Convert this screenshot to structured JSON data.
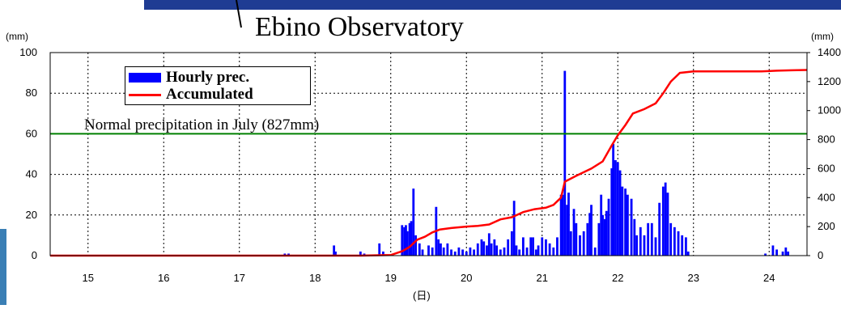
{
  "chart_data": {
    "type": "bar+line",
    "title": "Ebino Observatory",
    "left_unit": "(mm)",
    "right_unit": "(mm)",
    "xlabel": "(日)",
    "x_ticks": [
      "15",
      "16",
      "17",
      "18",
      "19",
      "20",
      "21",
      "22",
      "23",
      "24"
    ],
    "left_ticks": [
      "0",
      "20",
      "40",
      "60",
      "80",
      "100"
    ],
    "right_ticks": [
      "0",
      "200",
      "400",
      "600",
      "800",
      "1000",
      "1200",
      "1400"
    ],
    "ylim_left": [
      0,
      100
    ],
    "ylim_right": [
      0,
      1400
    ],
    "xlim_days": [
      14.5,
      24.5
    ],
    "grid": "dotted",
    "normal_line": {
      "value": 60,
      "label": "Normal precipitation in July (827mm)",
      "color": "#008000"
    },
    "series": [
      {
        "name": "Hourly prec.",
        "kind": "bar",
        "color": "#0000ff",
        "points": [
          [
            17.6,
            1
          ],
          [
            17.65,
            1
          ],
          [
            18.25,
            5
          ],
          [
            18.27,
            2
          ],
          [
            18.6,
            2
          ],
          [
            18.65,
            1
          ],
          [
            18.85,
            6
          ],
          [
            18.9,
            2
          ],
          [
            19.15,
            15
          ],
          [
            19.18,
            14
          ],
          [
            19.2,
            15
          ],
          [
            19.22,
            12
          ],
          [
            19.25,
            16
          ],
          [
            19.27,
            17
          ],
          [
            19.3,
            33
          ],
          [
            19.33,
            10
          ],
          [
            19.38,
            6
          ],
          [
            19.42,
            3
          ],
          [
            19.5,
            5
          ],
          [
            19.55,
            4
          ],
          [
            19.6,
            24
          ],
          [
            19.63,
            8
          ],
          [
            19.66,
            6
          ],
          [
            19.7,
            4
          ],
          [
            19.75,
            6
          ],
          [
            19.8,
            3
          ],
          [
            19.85,
            2
          ],
          [
            19.9,
            4
          ],
          [
            19.95,
            3
          ],
          [
            20.0,
            2
          ],
          [
            20.05,
            4
          ],
          [
            20.1,
            3
          ],
          [
            20.15,
            6
          ],
          [
            20.2,
            8
          ],
          [
            20.23,
            7
          ],
          [
            20.27,
            5
          ],
          [
            20.3,
            11
          ],
          [
            20.33,
            6
          ],
          [
            20.37,
            8
          ],
          [
            20.4,
            5
          ],
          [
            20.45,
            3
          ],
          [
            20.5,
            4
          ],
          [
            20.55,
            8
          ],
          [
            20.6,
            12
          ],
          [
            20.63,
            27
          ],
          [
            20.66,
            5
          ],
          [
            20.7,
            3
          ],
          [
            20.75,
            9
          ],
          [
            20.8,
            4
          ],
          [
            20.85,
            9
          ],
          [
            20.88,
            9
          ],
          [
            20.92,
            3
          ],
          [
            20.95,
            5
          ],
          [
            21.0,
            9
          ],
          [
            21.05,
            8
          ],
          [
            21.1,
            6
          ],
          [
            21.15,
            4
          ],
          [
            21.2,
            9
          ],
          [
            21.25,
            30
          ],
          [
            21.27,
            30
          ],
          [
            21.3,
            91
          ],
          [
            21.33,
            25
          ],
          [
            21.35,
            31
          ],
          [
            21.38,
            12
          ],
          [
            21.42,
            23
          ],
          [
            21.45,
            16
          ],
          [
            21.5,
            10
          ],
          [
            21.55,
            12
          ],
          [
            21.6,
            16
          ],
          [
            21.63,
            21
          ],
          [
            21.65,
            25
          ],
          [
            21.7,
            4
          ],
          [
            21.75,
            16
          ],
          [
            21.78,
            30
          ],
          [
            21.8,
            20
          ],
          [
            21.83,
            18
          ],
          [
            21.85,
            22
          ],
          [
            21.88,
            28
          ],
          [
            21.92,
            43
          ],
          [
            21.94,
            55
          ],
          [
            21.97,
            47
          ],
          [
            22.0,
            46
          ],
          [
            22.03,
            42
          ],
          [
            22.06,
            34
          ],
          [
            22.1,
            33
          ],
          [
            22.13,
            30
          ],
          [
            22.18,
            28
          ],
          [
            22.22,
            18
          ],
          [
            22.25,
            10
          ],
          [
            22.3,
            14
          ],
          [
            22.35,
            10
          ],
          [
            22.4,
            16
          ],
          [
            22.45,
            16
          ],
          [
            22.5,
            9
          ],
          [
            22.55,
            26
          ],
          [
            22.6,
            34
          ],
          [
            22.63,
            36
          ],
          [
            22.66,
            31
          ],
          [
            22.7,
            16
          ],
          [
            22.75,
            14
          ],
          [
            22.8,
            12
          ],
          [
            22.85,
            10
          ],
          [
            22.9,
            9
          ],
          [
            22.93,
            2
          ],
          [
            23.95,
            1
          ],
          [
            24.05,
            5
          ],
          [
            24.1,
            3
          ],
          [
            24.18,
            2
          ],
          [
            24.22,
            4
          ],
          [
            24.25,
            2
          ]
        ]
      },
      {
        "name": "Accumulated",
        "kind": "line",
        "color": "#ff0000",
        "points": [
          [
            14.5,
            0
          ],
          [
            18.6,
            0
          ],
          [
            18.8,
            2
          ],
          [
            19.0,
            4
          ],
          [
            19.15,
            30
          ],
          [
            19.25,
            60
          ],
          [
            19.35,
            110
          ],
          [
            19.45,
            130
          ],
          [
            19.55,
            160
          ],
          [
            19.65,
            180
          ],
          [
            19.8,
            190
          ],
          [
            20.0,
            200
          ],
          [
            20.15,
            205
          ],
          [
            20.3,
            215
          ],
          [
            20.45,
            250
          ],
          [
            20.6,
            265
          ],
          [
            20.75,
            300
          ],
          [
            20.9,
            320
          ],
          [
            21.05,
            330
          ],
          [
            21.15,
            350
          ],
          [
            21.25,
            400
          ],
          [
            21.3,
            510
          ],
          [
            21.45,
            550
          ],
          [
            21.65,
            600
          ],
          [
            21.8,
            650
          ],
          [
            21.92,
            760
          ],
          [
            22.0,
            830
          ],
          [
            22.1,
            900
          ],
          [
            22.2,
            980
          ],
          [
            22.35,
            1010
          ],
          [
            22.5,
            1050
          ],
          [
            22.6,
            1120
          ],
          [
            22.7,
            1200
          ],
          [
            22.82,
            1260
          ],
          [
            23.0,
            1270
          ],
          [
            23.9,
            1270
          ],
          [
            24.1,
            1275
          ],
          [
            24.3,
            1278
          ],
          [
            24.5,
            1280
          ]
        ]
      }
    ],
    "legend": {
      "placement": "top-left",
      "items": [
        "Hourly prec.",
        "Accumulated"
      ]
    }
  }
}
